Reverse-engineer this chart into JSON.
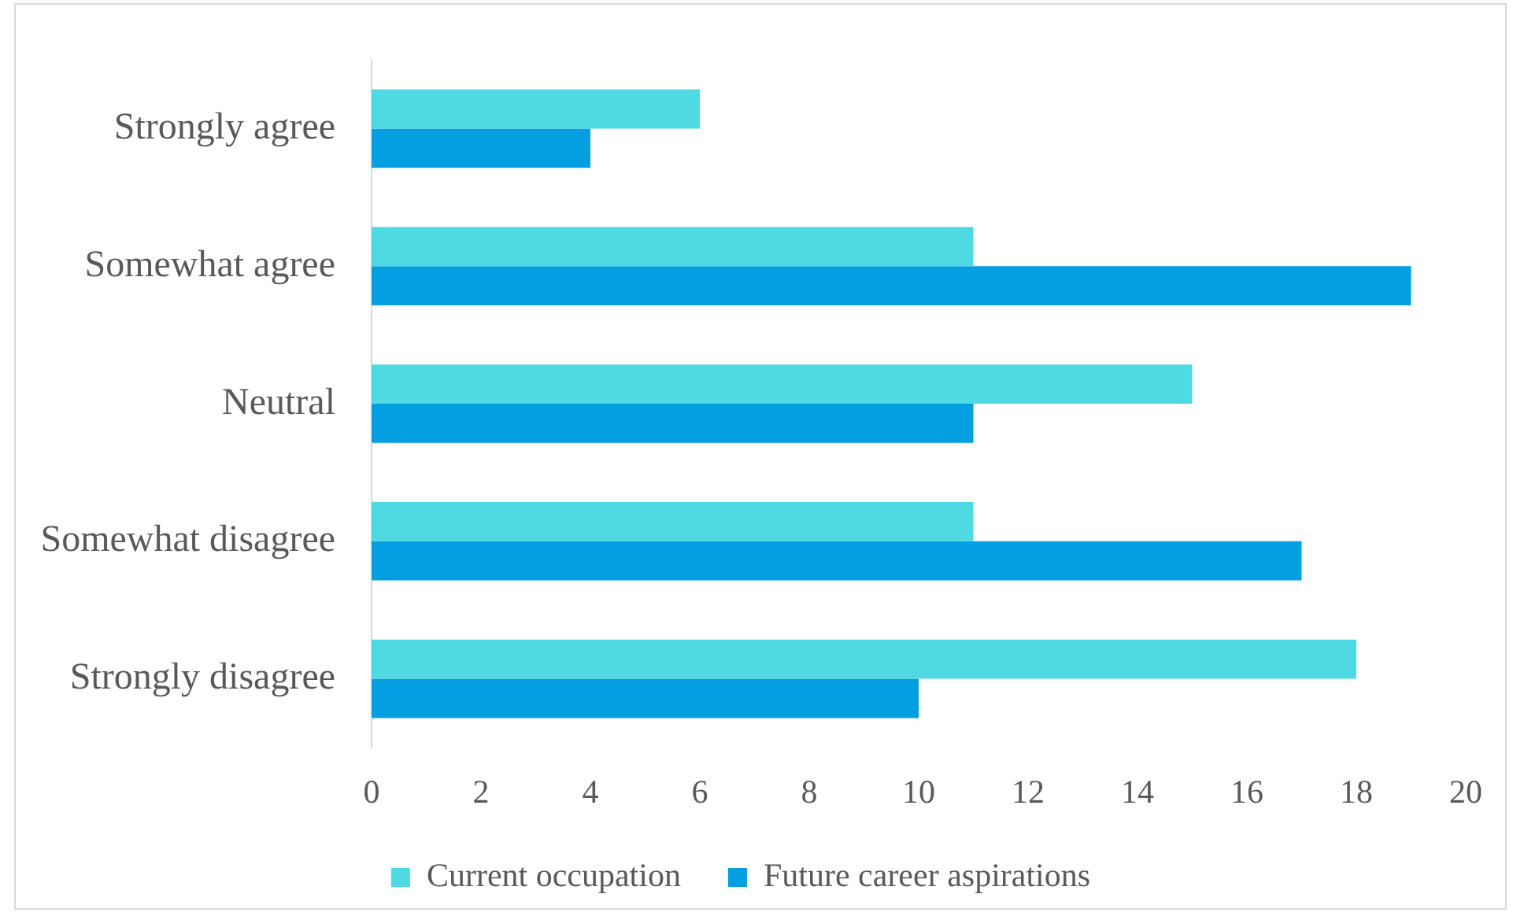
{
  "chart_data": {
    "type": "bar",
    "orientation": "horizontal",
    "categories": [
      "Strongly agree",
      "Somewhat agree",
      "Neutral",
      "Somewhat disagree",
      "Strongly disagree"
    ],
    "series": [
      {
        "name": "Current occupation",
        "color": "#4fd9e3",
        "values": [
          6,
          11,
          15,
          11,
          18
        ]
      },
      {
        "name": "Future career aspirations",
        "color": "#039fe0",
        "values": [
          4,
          19,
          11,
          17,
          10
        ]
      }
    ],
    "xlim": [
      0,
      20
    ],
    "xticks": [
      0,
      2,
      4,
      6,
      8,
      10,
      12,
      14,
      16,
      18,
      20
    ],
    "grid": false,
    "legend": "bottom"
  }
}
